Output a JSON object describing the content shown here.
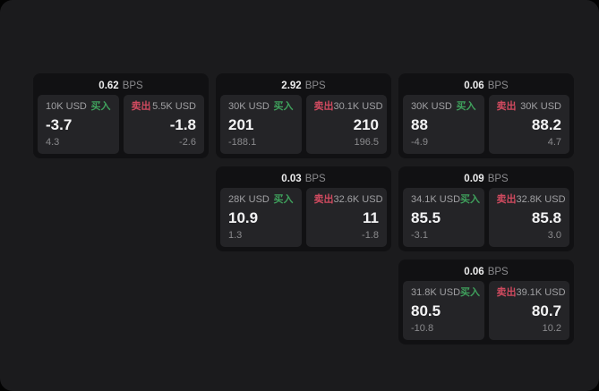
{
  "labels": {
    "bps_unit": "BPS",
    "buy": "买入",
    "sell": "卖出"
  },
  "colors": {
    "page_background": "#1b1b1d",
    "card_background": "#111113",
    "panel_background": "#242427",
    "buy_green": "#3fa05c",
    "sell_red": "#cf4a5f"
  },
  "cards": [
    {
      "row": 1,
      "col": 1,
      "bps": "0.62",
      "buy": {
        "amount": "10K USD",
        "value": "-3.7",
        "delta": "4.3"
      },
      "sell": {
        "amount": "5.5K USD",
        "value": "-1.8",
        "delta": "-2.6"
      }
    },
    {
      "row": 1,
      "col": 2,
      "bps": "2.92",
      "buy": {
        "amount": "30K USD",
        "value": "201",
        "delta": "-188.1"
      },
      "sell": {
        "amount": "30.1K USD",
        "value": "210",
        "delta": "196.5"
      }
    },
    {
      "row": 1,
      "col": 3,
      "bps": "0.06",
      "buy": {
        "amount": "30K USD",
        "value": "88",
        "delta": "-4.9"
      },
      "sell": {
        "amount": "30K USD",
        "value": "88.2",
        "delta": "4.7"
      }
    },
    {
      "row": 2,
      "col": 2,
      "bps": "0.03",
      "buy": {
        "amount": "28K USD",
        "value": "10.9",
        "delta": "1.3"
      },
      "sell": {
        "amount": "32.6K USD",
        "value": "11",
        "delta": "-1.8"
      }
    },
    {
      "row": 2,
      "col": 3,
      "bps": "0.09",
      "buy": {
        "amount": "34.1K USD",
        "value": "85.5",
        "delta": "-3.1"
      },
      "sell": {
        "amount": "32.8K USD",
        "value": "85.8",
        "delta": "3.0"
      }
    },
    {
      "row": 3,
      "col": 3,
      "bps": "0.06",
      "buy": {
        "amount": "31.8K USD",
        "value": "80.5",
        "delta": "-10.8"
      },
      "sell": {
        "amount": "39.1K USD",
        "value": "80.7",
        "delta": "10.2"
      }
    }
  ]
}
